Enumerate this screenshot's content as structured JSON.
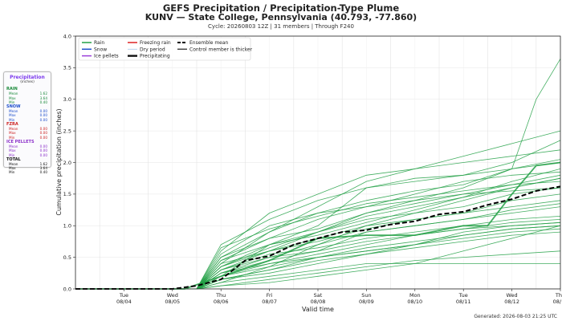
{
  "header": {
    "title": "GEFS Precipitation / Precipitation-Type Plume",
    "subtitle": "KUNV — State College, Pennsylvania (40.793, -77.860)",
    "cycle_line": "Cycle: 20260803 12Z  |  31 members  |  Through F240"
  },
  "footer": {
    "generated": "Generated: 2026-08-03 21:25 UTC"
  },
  "summary": {
    "heading": "Precipitation",
    "subheading": "(inches)",
    "categories": [
      {
        "name": "RAIN",
        "color": "#1a8a3a",
        "rows": [
          {
            "label": "Mean",
            "value": "1.62"
          },
          {
            "label": "Max",
            "value": "3.64"
          },
          {
            "label": "Min",
            "value": "0.40"
          }
        ]
      },
      {
        "name": "SNOW",
        "color": "#1f4fcc",
        "rows": [
          {
            "label": "Mean",
            "value": "0.00"
          },
          {
            "label": "Max",
            "value": "0.00"
          },
          {
            "label": "Min",
            "value": "0.00"
          }
        ]
      },
      {
        "name": "FZRA",
        "color": "#cc2222",
        "rows": [
          {
            "label": "Mean",
            "value": "0.00"
          },
          {
            "label": "Max",
            "value": "0.00"
          },
          {
            "label": "Min",
            "value": "0.00"
          }
        ]
      },
      {
        "name": "ICE PELLETS",
        "color": "#8b2fc9",
        "rows": [
          {
            "label": "Mean",
            "value": "0.00"
          },
          {
            "label": "Max",
            "value": "0.00"
          },
          {
            "label": "Min",
            "value": "0.00"
          }
        ]
      },
      {
        "name": "TOTAL",
        "color": "#111111",
        "rows": [
          {
            "label": "Mean",
            "value": "1.62"
          },
          {
            "label": "Max",
            "value": "3.64"
          },
          {
            "label": "Min",
            "value": "0.40"
          }
        ]
      }
    ]
  },
  "legend": [
    {
      "label": "Rain",
      "color": "#22a045",
      "style": "solid"
    },
    {
      "label": "Freezing rain",
      "color": "#dd2222",
      "style": "solid"
    },
    {
      "label": "Ensemble mean",
      "color": "#000000",
      "style": "dashed"
    },
    {
      "label": "Snow",
      "color": "#1f4fcc",
      "style": "solid"
    },
    {
      "label": "Dry period",
      "color": "#a8c8e8",
      "style": "thin"
    },
    {
      "label": "Control member is thicker",
      "color": "#444444",
      "style": "solid"
    },
    {
      "label": "Ice pellets",
      "color": "#9b3fd9",
      "style": "solid"
    },
    {
      "label": "Precipitating",
      "color": "#111111",
      "style": "thick"
    }
  ],
  "chart_data": {
    "type": "line",
    "xlabel": "Valid time",
    "ylabel": "Cumulative precipitation (inches)",
    "ylim": [
      0,
      4.0
    ],
    "yticks": [
      "0.0",
      "0.5",
      "1.0",
      "1.5",
      "2.0",
      "2.5",
      "3.0",
      "3.5",
      "4.0"
    ],
    "xlim_days": [
      "2026-08-03 12Z",
      "2026-08-13 12Z"
    ],
    "xticks": [
      {
        "day": "Tue",
        "date": "08/04"
      },
      {
        "day": "Wed",
        "date": "08/05"
      },
      {
        "day": "Thu",
        "date": "08/06"
      },
      {
        "day": "Fri",
        "date": "08/07"
      },
      {
        "day": "Sat",
        "date": "08/08"
      },
      {
        "day": "Sun",
        "date": "08/09"
      },
      {
        "day": "Mon",
        "date": "08/10"
      },
      {
        "day": "Tue",
        "date": "08/11"
      },
      {
        "day": "Wed",
        "date": "08/12"
      },
      {
        "day": "Thu",
        "date": "08/13"
      }
    ],
    "grid": true,
    "legend_position": "top-left",
    "series": [
      {
        "name": "Ensemble mean",
        "color": "#000000",
        "dashed": true,
        "x": [
          "08/03 12Z",
          "08/04 12Z",
          "08/05 12Z",
          "08/06 00Z",
          "08/06 12Z",
          "08/07 00Z",
          "08/07 12Z",
          "08/08 00Z",
          "08/08 12Z",
          "08/09 00Z",
          "08/09 12Z",
          "08/10 00Z",
          "08/10 12Z",
          "08/11 00Z",
          "08/11 12Z",
          "08/12 00Z",
          "08/12 12Z",
          "08/13 00Z",
          "08/13 12Z"
        ],
        "y": [
          0.0,
          0.0,
          0.0,
          0.05,
          0.15,
          0.45,
          0.52,
          0.7,
          0.8,
          0.9,
          0.93,
          1.02,
          1.07,
          1.18,
          1.22,
          1.33,
          1.42,
          1.55,
          1.62
        ]
      },
      {
        "color": "#22a045",
        "x": [
          "08/03 12Z",
          "08/05 18Z",
          "08/06 12Z",
          "08/07 12Z",
          "08/08 12Z",
          "08/09 12Z",
          "08/10 12Z",
          "08/11 12Z",
          "08/12 00Z",
          "08/12 12Z",
          "08/13 00Z",
          "08/13 12Z"
        ],
        "y": [
          0,
          0,
          0.2,
          0.45,
          0.8,
          0.85,
          0.85,
          1.0,
          1.0,
          1.5,
          1.95,
          2.0
        ]
      },
      {
        "color": "#22a045",
        "x": [
          "08/03 12Z",
          "08/06 00Z",
          "08/06 12Z",
          "08/07 12Z",
          "08/08 12Z",
          "08/09 12Z",
          "08/10 12Z",
          "08/11 12Z",
          "08/12 12Z",
          "08/13 00Z",
          "08/13 12Z"
        ],
        "y": [
          0,
          0,
          0.3,
          0.6,
          0.9,
          1.2,
          1.4,
          1.6,
          1.9,
          3.0,
          3.64
        ]
      },
      {
        "color": "#22a045",
        "x": [
          "08/03 12Z",
          "08/06 00Z",
          "08/06 12Z",
          "08/07 12Z",
          "08/08 12Z",
          "08/09 12Z",
          "08/10 12Z",
          "08/11 12Z",
          "08/12 12Z",
          "08/13 12Z"
        ],
        "y": [
          0,
          0,
          0.5,
          0.9,
          1.3,
          1.7,
          1.9,
          2.1,
          2.3,
          2.5
        ]
      },
      {
        "color": "#22a045",
        "x": [
          "08/03 12Z",
          "08/06 00Z",
          "08/06 12Z",
          "08/07 12Z",
          "08/08 12Z",
          "08/09 12Z",
          "08/10 12Z",
          "08/11 12Z",
          "08/12 12Z",
          "08/13 12Z"
        ],
        "y": [
          0,
          0,
          0.1,
          0.2,
          0.3,
          0.4,
          0.4,
          0.4,
          0.4,
          0.4
        ]
      },
      {
        "color": "#22a045",
        "x": [
          "08/03 12Z",
          "08/06 00Z",
          "08/06 12Z",
          "08/07 12Z",
          "08/08 12Z",
          "08/09 12Z",
          "08/10 12Z",
          "08/11 12Z",
          "08/12 12Z",
          "08/13 12Z"
        ],
        "y": [
          0,
          0,
          0.35,
          0.7,
          1.0,
          1.6,
          1.75,
          1.8,
          2.0,
          2.35
        ]
      },
      {
        "color": "#22a045",
        "x": [
          "08/03 12Z",
          "08/06 00Z",
          "08/06 12Z",
          "08/07 12Z",
          "08/08 12Z",
          "08/09 12Z",
          "08/10 12Z",
          "08/11 12Z",
          "08/12 12Z",
          "08/13 12Z"
        ],
        "y": [
          0,
          0,
          0.25,
          0.5,
          0.6,
          0.9,
          1.0,
          1.1,
          1.2,
          1.3
        ]
      },
      {
        "color": "#22a045",
        "x": [
          "08/03 12Z",
          "08/06 00Z",
          "08/06 12Z",
          "08/07 12Z",
          "08/08 12Z",
          "08/09 12Z",
          "08/10 12Z",
          "08/11 12Z",
          "08/12 12Z",
          "08/13 12Z"
        ],
        "y": [
          0,
          0,
          0.6,
          1.2,
          1.5,
          1.8,
          1.9,
          2.0,
          2.1,
          2.2
        ]
      },
      {
        "color": "#22a045",
        "x": [
          "08/03 12Z",
          "08/06 00Z",
          "08/06 12Z",
          "08/07 12Z",
          "08/08 12Z",
          "08/09 12Z",
          "08/10 12Z",
          "08/11 12Z",
          "08/12 12Z",
          "08/13 12Z"
        ],
        "y": [
          0,
          0,
          0.15,
          0.3,
          0.5,
          0.6,
          0.7,
          0.8,
          0.9,
          0.95
        ]
      },
      {
        "color": "#22a045",
        "x": [
          "08/03 12Z",
          "08/06 00Z",
          "08/06 12Z",
          "08/07 12Z",
          "08/08 12Z",
          "08/09 12Z",
          "08/10 12Z",
          "08/11 12Z",
          "08/12 12Z",
          "08/13 12Z"
        ],
        "y": [
          0,
          0,
          0.45,
          0.8,
          1.1,
          1.3,
          1.5,
          1.7,
          1.8,
          1.85
        ]
      },
      {
        "color": "#22a045",
        "x": [
          "08/03 12Z",
          "08/06 00Z",
          "08/06 12Z",
          "08/07 12Z",
          "08/08 12Z",
          "08/09 12Z",
          "08/10 12Z",
          "08/11 12Z",
          "08/12 12Z",
          "08/13 12Z"
        ],
        "y": [
          0,
          0,
          0.05,
          0.1,
          0.2,
          0.3,
          0.4,
          0.6,
          0.8,
          1.0
        ]
      },
      {
        "color": "#22a045",
        "x": [
          "08/03 12Z",
          "08/06 00Z",
          "08/06 12Z",
          "08/07 12Z",
          "08/08 12Z",
          "08/09 12Z",
          "08/10 12Z",
          "08/11 12Z",
          "08/12 12Z",
          "08/13 12Z"
        ],
        "y": [
          0,
          0,
          0.4,
          0.6,
          0.8,
          1.0,
          1.2,
          1.3,
          1.5,
          1.6
        ]
      },
      {
        "color": "#22a045",
        "x": [
          "08/03 12Z",
          "08/06 00Z",
          "08/06 12Z",
          "08/07 12Z",
          "08/08 12Z",
          "08/09 12Z",
          "08/10 12Z",
          "08/11 12Z",
          "08/12 12Z",
          "08/13 12Z"
        ],
        "y": [
          0,
          0,
          0.2,
          0.7,
          0.9,
          1.1,
          1.2,
          1.4,
          1.6,
          1.75
        ]
      },
      {
        "color": "#22a045",
        "x": [
          "08/03 12Z",
          "08/06 00Z",
          "08/06 12Z",
          "08/07 12Z",
          "08/08 12Z",
          "08/09 12Z",
          "08/10 12Z",
          "08/11 12Z",
          "08/12 12Z",
          "08/13 12Z"
        ],
        "y": [
          0,
          0,
          0.3,
          0.55,
          0.65,
          0.8,
          0.9,
          1.0,
          1.1,
          1.15
        ]
      },
      {
        "color": "#22a045",
        "x": [
          "08/03 12Z",
          "08/06 00Z",
          "08/06 12Z",
          "08/07 12Z",
          "08/08 12Z",
          "08/09 12Z",
          "08/10 12Z",
          "08/11 12Z",
          "08/12 12Z",
          "08/13 12Z"
        ],
        "y": [
          0,
          0,
          0.7,
          1.1,
          1.4,
          1.6,
          1.7,
          1.8,
          1.9,
          2.0
        ]
      },
      {
        "color": "#22a045",
        "x": [
          "08/03 12Z",
          "08/06 00Z",
          "08/06 12Z",
          "08/07 12Z",
          "08/08 12Z",
          "08/09 12Z",
          "08/10 12Z",
          "08/11 12Z",
          "08/12 12Z",
          "08/13 12Z"
        ],
        "y": [
          0,
          0,
          0.1,
          0.35,
          0.7,
          1.0,
          1.1,
          1.2,
          1.4,
          1.5
        ]
      },
      {
        "color": "#22a045",
        "x": [
          "08/03 12Z",
          "08/06 00Z",
          "08/06 12Z",
          "08/07 12Z",
          "08/08 12Z",
          "08/09 12Z",
          "08/10 12Z",
          "08/11 12Z",
          "08/12 12Z",
          "08/13 12Z"
        ],
        "y": [
          0,
          0,
          0.25,
          0.4,
          0.55,
          0.7,
          0.85,
          0.95,
          1.05,
          1.1
        ]
      },
      {
        "color": "#22a045",
        "x": [
          "08/03 12Z",
          "08/06 00Z",
          "08/06 12Z",
          "08/07 12Z",
          "08/08 12Z",
          "08/09 12Z",
          "08/10 12Z",
          "08/11 12Z",
          "08/12 12Z",
          "08/13 12Z"
        ],
        "y": [
          0,
          0,
          0.5,
          0.8,
          0.95,
          1.2,
          1.35,
          1.5,
          1.65,
          1.8
        ]
      },
      {
        "color": "#22a045",
        "x": [
          "08/03 12Z",
          "08/06 00Z",
          "08/06 12Z",
          "08/07 12Z",
          "08/08 12Z",
          "08/09 12Z",
          "08/10 12Z",
          "08/11 12Z",
          "08/12 12Z",
          "08/13 12Z"
        ],
        "y": [
          0,
          0,
          0.15,
          0.3,
          0.45,
          0.55,
          0.65,
          0.75,
          0.85,
          0.9
        ]
      },
      {
        "color": "#22a045",
        "x": [
          "08/03 12Z",
          "08/06 00Z",
          "08/06 12Z",
          "08/07 12Z",
          "08/08 12Z",
          "08/09 12Z",
          "08/10 12Z",
          "08/11 12Z",
          "08/12 12Z",
          "08/13 12Z"
        ],
        "y": [
          0,
          0,
          0.35,
          0.6,
          0.75,
          0.95,
          1.1,
          1.2,
          1.3,
          1.4
        ]
      },
      {
        "color": "#22a045",
        "x": [
          "08/03 12Z",
          "08/06 00Z",
          "08/06 12Z",
          "08/07 12Z",
          "08/08 12Z",
          "08/09 12Z",
          "08/10 12Z",
          "08/11 12Z",
          "08/12 12Z",
          "08/13 12Z"
        ],
        "y": [
          0,
          0,
          0.4,
          0.9,
          1.2,
          1.4,
          1.55,
          1.65,
          1.9,
          2.05
        ]
      },
      {
        "color": "#22a045",
        "x": [
          "08/03 12Z",
          "08/06 00Z",
          "08/06 12Z",
          "08/07 12Z",
          "08/08 12Z",
          "08/09 12Z",
          "08/10 12Z",
          "08/11 12Z",
          "08/12 12Z",
          "08/13 12Z"
        ],
        "y": [
          0,
          0,
          0.2,
          0.4,
          0.5,
          0.6,
          0.7,
          0.9,
          1.0,
          1.05
        ]
      },
      {
        "color": "#22a045",
        "x": [
          "08/03 12Z",
          "08/06 00Z",
          "08/06 12Z",
          "08/07 12Z",
          "08/08 12Z",
          "08/09 12Z",
          "08/10 12Z",
          "08/11 12Z",
          "08/12 12Z",
          "08/13 12Z"
        ],
        "y": [
          0,
          0,
          0.55,
          1.0,
          1.2,
          1.3,
          1.4,
          1.5,
          1.55,
          1.6
        ]
      },
      {
        "color": "#22a045",
        "x": [
          "08/03 12Z",
          "08/06 00Z",
          "08/06 12Z",
          "08/07 12Z",
          "08/08 12Z",
          "08/09 12Z",
          "08/10 12Z",
          "08/11 12Z",
          "08/12 12Z",
          "08/13 12Z"
        ],
        "y": [
          0,
          0,
          0.3,
          0.5,
          0.7,
          0.9,
          1.0,
          1.1,
          1.25,
          1.35
        ]
      },
      {
        "color": "#22a045",
        "x": [
          "08/03 12Z",
          "08/06 00Z",
          "08/06 12Z",
          "08/07 12Z",
          "08/08 12Z",
          "08/09 12Z",
          "08/10 12Z",
          "08/11 12Z",
          "08/12 12Z",
          "08/13 12Z"
        ],
        "y": [
          0,
          0,
          0.05,
          0.15,
          0.25,
          0.35,
          0.45,
          0.5,
          0.55,
          0.6
        ]
      },
      {
        "color": "#22a045",
        "x": [
          "08/03 12Z",
          "08/06 00Z",
          "08/06 12Z",
          "08/07 12Z",
          "08/08 12Z",
          "08/09 12Z",
          "08/10 12Z",
          "08/11 12Z",
          "08/12 12Z",
          "08/13 12Z"
        ],
        "y": [
          0,
          0,
          0.45,
          0.7,
          0.85,
          1.05,
          1.25,
          1.45,
          1.7,
          1.9
        ]
      },
      {
        "color": "#22a045",
        "x": [
          "08/03 12Z",
          "08/06 00Z",
          "08/06 12Z",
          "08/07 12Z",
          "08/08 12Z",
          "08/09 12Z",
          "08/10 12Z",
          "08/11 12Z",
          "08/12 12Z",
          "08/13 12Z"
        ],
        "y": [
          0,
          0,
          0.25,
          0.45,
          0.6,
          0.75,
          0.85,
          0.95,
          1.0,
          1.05
        ]
      },
      {
        "color": "#22a045",
        "x": [
          "08/03 12Z",
          "08/06 00Z",
          "08/06 12Z",
          "08/07 12Z",
          "08/08 12Z",
          "08/09 12Z",
          "08/10 12Z",
          "08/11 12Z",
          "08/12 12Z",
          "08/13 12Z"
        ],
        "y": [
          0,
          0,
          0.65,
          0.95,
          1.15,
          1.35,
          1.45,
          1.55,
          1.65,
          1.7
        ]
      },
      {
        "color": "#22a045",
        "x": [
          "08/03 12Z",
          "08/06 00Z",
          "08/06 12Z",
          "08/07 12Z",
          "08/08 12Z",
          "08/09 12Z",
          "08/10 12Z",
          "08/11 12Z",
          "08/12 12Z",
          "08/13 12Z"
        ],
        "y": [
          0,
          0,
          0.15,
          0.25,
          0.4,
          0.55,
          0.7,
          0.85,
          0.95,
          1.0
        ]
      },
      {
        "color": "#22a045",
        "x": [
          "08/03 12Z",
          "08/06 00Z",
          "08/06 12Z",
          "08/07 12Z",
          "08/08 12Z",
          "08/09 12Z",
          "08/10 12Z",
          "08/11 12Z",
          "08/12 12Z",
          "08/13 12Z"
        ],
        "y": [
          0,
          0,
          0.35,
          0.65,
          0.9,
          1.15,
          1.3,
          1.45,
          1.6,
          1.75
        ]
      },
      {
        "color": "#22a045",
        "x": [
          "08/03 12Z",
          "08/06 00Z",
          "08/06 12Z",
          "08/07 12Z",
          "08/08 12Z",
          "08/09 12Z",
          "08/10 12Z",
          "08/11 12Z",
          "08/12 12Z",
          "08/13 12Z"
        ],
        "y": [
          0,
          0,
          0.2,
          0.35,
          0.5,
          0.65,
          0.75,
          0.85,
          0.95,
          1.0
        ]
      }
    ]
  }
}
